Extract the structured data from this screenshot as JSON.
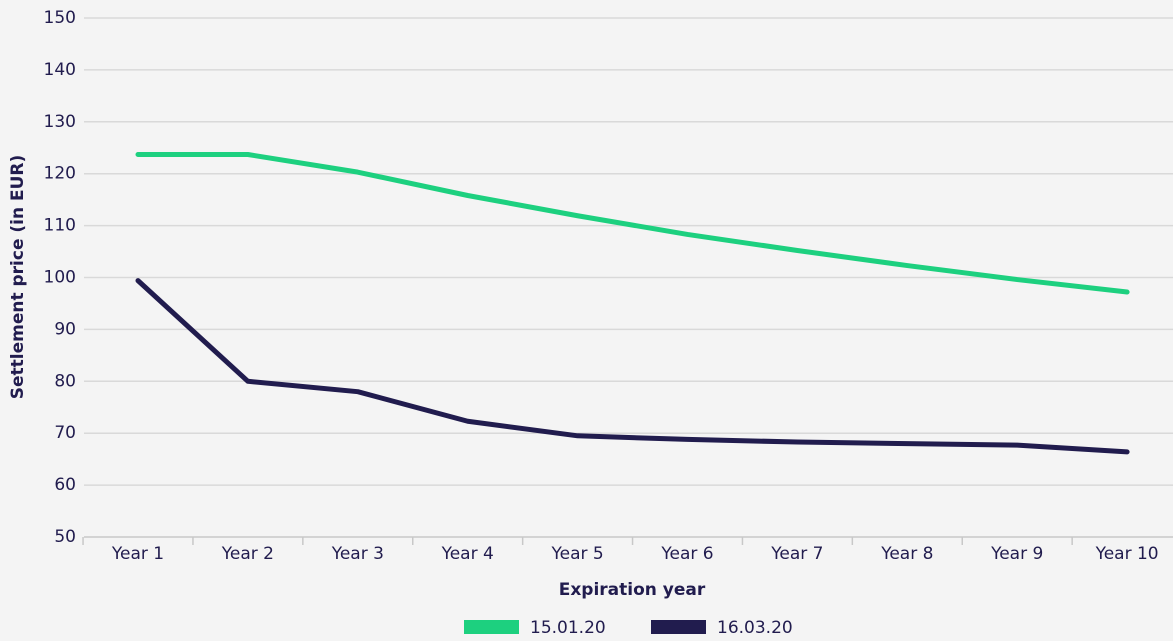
{
  "chart_data": {
    "type": "line",
    "x_label": "Expiration year",
    "y_label": "Settlement price (in EUR)",
    "categories": [
      "Year 1",
      "Year 2",
      "Year 3",
      "Year 4",
      "Year 5",
      "Year 6",
      "Year 7",
      "Year 8",
      "Year 9",
      "Year 10"
    ],
    "series": [
      {
        "name": "15.01.20",
        "color": "#1dd07f",
        "values": [
          123.7,
          123.7,
          120.3,
          115.8,
          111.9,
          108.3,
          105.2,
          102.3,
          99.6,
          97.2
        ]
      },
      {
        "name": "16.03.20",
        "color": "#211c4e",
        "values": [
          99.4,
          80.0,
          78.0,
          72.3,
          69.5,
          68.8,
          68.3,
          68.0,
          67.7,
          66.4
        ]
      }
    ],
    "ylim": [
      50,
      150
    ],
    "yticks": [
      50,
      60,
      70,
      80,
      90,
      100,
      110,
      120,
      130,
      140,
      150
    ],
    "grid": true,
    "legend": "bottom"
  }
}
